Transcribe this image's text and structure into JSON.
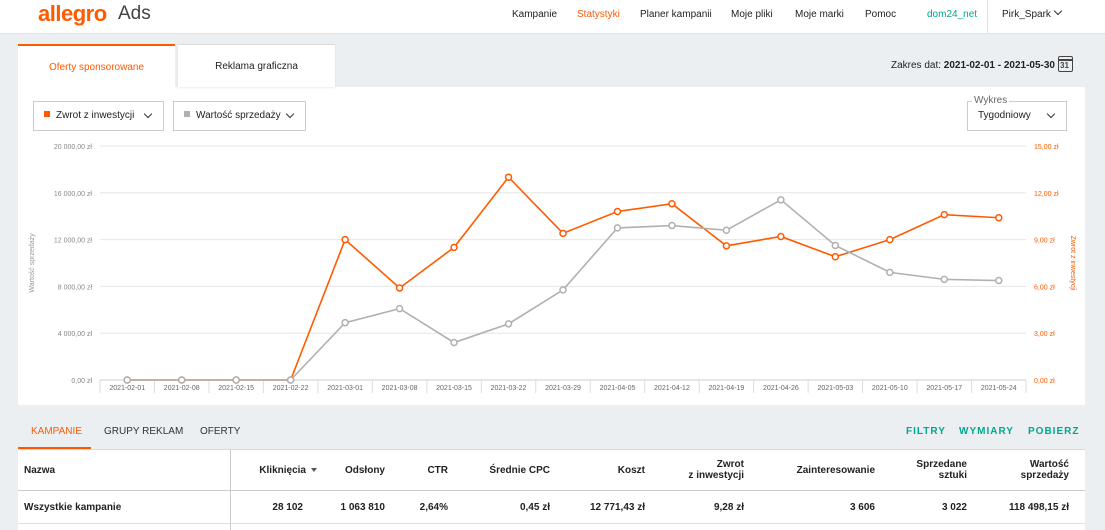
{
  "header": {
    "logo": "allegro",
    "logo_sub": "Ads",
    "nav": [
      "Kampanie",
      "Statystyki",
      "Planer kampanii",
      "Moje pliki",
      "Moje marki",
      "Pomoc"
    ],
    "active_nav": "Statystyki",
    "account_link": "dom24_net",
    "user_name": "Pirk_Spark",
    "accent_color": "#ff5a00",
    "secondary_color": "#00a790"
  },
  "tabs": {
    "sponsored": "Oferty sponsorowane",
    "graphic": "Reklama graficzna"
  },
  "date_range": {
    "label": "Zakres dat:",
    "value": "2021-02-01 - 2021-05-30",
    "icon_day": "31"
  },
  "selectors": {
    "metric1": "Zwrot z inwestycji",
    "metric1_color": "#ff5a00",
    "metric2": "Wartość sprzedaży",
    "metric2_color": "#b0b0b0",
    "chart_group_label": "Wykres",
    "chart_group_value": "Tygodniowy"
  },
  "chart_data": {
    "type": "line",
    "x": [
      "2021-02-01",
      "2021-02-08",
      "2021-02-15",
      "2021-02-22",
      "2021-03-01",
      "2021-03-08",
      "2021-03-15",
      "2021-03-22",
      "2021-03-29",
      "2021-04-05",
      "2021-04-12",
      "2021-04-19",
      "2021-04-26",
      "2021-05-03",
      "2021-05-10",
      "2021-05-17",
      "2021-05-24"
    ],
    "series": [
      {
        "name": "Zwrot z inwestycji",
        "axis": "right",
        "color": "#ff5a00",
        "values": [
          0,
          0,
          0,
          0,
          9.0,
          5.9,
          8.5,
          13.0,
          9.4,
          10.8,
          11.3,
          8.6,
          9.2,
          7.9,
          9.0,
          10.6,
          10.4
        ]
      },
      {
        "name": "Wartość sprzedaży",
        "axis": "left",
        "color": "#b0b0b0",
        "values": [
          0,
          0,
          0,
          0,
          4900,
          6100,
          3200,
          4800,
          7700,
          13000,
          13200,
          12800,
          15400,
          11500,
          9200,
          8600,
          8500
        ]
      }
    ],
    "ylabel_left": "Wartość sprzedaży",
    "ylabel_right": "Zwrot z inwestycji",
    "yticks_left": [
      "20 000,00 zł",
      "16 000,00 zł",
      "12 000,00 zł",
      "8 000,00 zł",
      "4 000,00 zł",
      "0,00 zł"
    ],
    "yticks_right": [
      "15,00 zł",
      "12,00 zł",
      "9,00 zł",
      "6,00 zł",
      "3,00 zł",
      "0,00 zł"
    ],
    "ylim_left": [
      0,
      20000
    ],
    "ylim_right": [
      0,
      15
    ],
    "grid": true
  },
  "table_tabs": [
    "KAMPANIE",
    "GRUPY REKLAM",
    "OFERTY"
  ],
  "table_actions": [
    "FILTRY",
    "WYMIARY",
    "POBIERZ"
  ],
  "table": {
    "headers": [
      "Nazwa",
      "Kliknięcia",
      "Odsłony",
      "CTR",
      "Średnie CPC",
      "Koszt",
      "Zwrot\nz inwestycji",
      "Zainteresowanie",
      "Sprzedane\nsztuki",
      "Wartość\nsprzedaży"
    ],
    "rows": [
      [
        "Wszystkie kampanie",
        "28 102",
        "1 063 810",
        "2,64%",
        "0,45 zł",
        "12 771,43 zł",
        "9,28 zł",
        "3 606",
        "3 022",
        "118 498,15 zł"
      ]
    ]
  }
}
